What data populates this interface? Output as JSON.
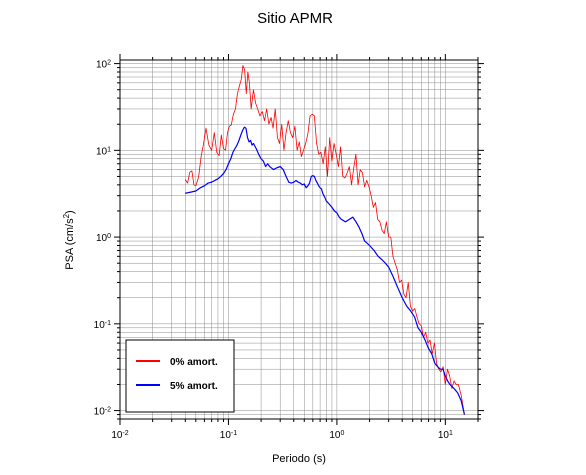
{
  "chart_data": {
    "type": "line",
    "title": "Sitio APMR",
    "xlabel": "Periodo (s)",
    "ylabel_main": "PSA (cm/s",
    "ylabel_exp": "2",
    "ylabel_tail": ")",
    "xscale": "log",
    "yscale": "log",
    "xlim": [
      0.01,
      20
    ],
    "ylim": [
      0.008,
      110
    ],
    "grid": true,
    "legend_position": "bottom-left",
    "x_ticks": [
      {
        "value": 0.01,
        "base": "10",
        "exp": "-2"
      },
      {
        "value": 0.1,
        "base": "10",
        "exp": "-1"
      },
      {
        "value": 1,
        "base": "10",
        "exp": "0"
      },
      {
        "value": 10,
        "base": "10",
        "exp": "1"
      }
    ],
    "y_ticks": [
      {
        "value": 0.01,
        "base": "10",
        "exp": "-2"
      },
      {
        "value": 0.1,
        "base": "10",
        "exp": "-1"
      },
      {
        "value": 1,
        "base": "10",
        "exp": "0"
      },
      {
        "value": 10,
        "base": "10",
        "exp": "1"
      },
      {
        "value": 100,
        "base": "10",
        "exp": "2"
      }
    ],
    "series": [
      {
        "name": "0% amort.",
        "color": "#ff0000",
        "points": [
          [
            0.04,
            4.6
          ],
          [
            0.042,
            4.2
          ],
          [
            0.044,
            5.6
          ],
          [
            0.046,
            5.8
          ],
          [
            0.048,
            4.0
          ],
          [
            0.05,
            3.9
          ],
          [
            0.053,
            4.9
          ],
          [
            0.056,
            8.5
          ],
          [
            0.059,
            12.0
          ],
          [
            0.062,
            18.0
          ],
          [
            0.066,
            11.5
          ],
          [
            0.07,
            10.0
          ],
          [
            0.074,
            16.0
          ],
          [
            0.078,
            9.5
          ],
          [
            0.082,
            8.7
          ],
          [
            0.086,
            15.0
          ],
          [
            0.09,
            10.5
          ],
          [
            0.094,
            10.0
          ],
          [
            0.098,
            16.0
          ],
          [
            0.102,
            19.0
          ],
          [
            0.106,
            19.5
          ],
          [
            0.111,
            26.0
          ],
          [
            0.116,
            30.0
          ],
          [
            0.121,
            45.0
          ],
          [
            0.126,
            55.0
          ],
          [
            0.131,
            65.0
          ],
          [
            0.136,
            95.0
          ],
          [
            0.141,
            85.0
          ],
          [
            0.146,
            45.0
          ],
          [
            0.151,
            80.0
          ],
          [
            0.156,
            60.0
          ],
          [
            0.162,
            30.0
          ],
          [
            0.17,
            50.0
          ],
          [
            0.178,
            35.0
          ],
          [
            0.186,
            30.0
          ],
          [
            0.195,
            25.0
          ],
          [
            0.205,
            28.0
          ],
          [
            0.215,
            22.0
          ],
          [
            0.225,
            30.0
          ],
          [
            0.236,
            20.0
          ],
          [
            0.247,
            24.0
          ],
          [
            0.258,
            18.0
          ],
          [
            0.27,
            30.0
          ],
          [
            0.283,
            14.0
          ],
          [
            0.296,
            12.0
          ],
          [
            0.31,
            20.0
          ],
          [
            0.325,
            10.0
          ],
          [
            0.34,
            16.0
          ],
          [
            0.356,
            22.0
          ],
          [
            0.373,
            16.0
          ],
          [
            0.391,
            14.0
          ],
          [
            0.41,
            19.0
          ],
          [
            0.43,
            10.0
          ],
          [
            0.45,
            12.5
          ],
          [
            0.47,
            8.5
          ],
          [
            0.492,
            10.0
          ],
          [
            0.515,
            12.0
          ],
          [
            0.54,
            15.5
          ],
          [
            0.566,
            25.0
          ],
          [
            0.593,
            26.0
          ],
          [
            0.62,
            25.0
          ],
          [
            0.65,
            12.0
          ],
          [
            0.681,
            9.0
          ],
          [
            0.713,
            9.5
          ],
          [
            0.747,
            7.0
          ],
          [
            0.782,
            11.0
          ],
          [
            0.819,
            5.0
          ],
          [
            0.858,
            14.0
          ],
          [
            0.899,
            7.5
          ],
          [
            0.941,
            12.0
          ],
          [
            0.986,
            9.0
          ],
          [
            1.033,
            6.5
          ],
          [
            1.082,
            11.0
          ],
          [
            1.133,
            5.0
          ],
          [
            1.187,
            4.8
          ],
          [
            1.243,
            5.5
          ],
          [
            1.302,
            6.5
          ],
          [
            1.364,
            4.0
          ],
          [
            1.428,
            6.2
          ],
          [
            1.496,
            9.0
          ],
          [
            1.567,
            4.0
          ],
          [
            1.641,
            6.0
          ],
          [
            1.719,
            5.5
          ],
          [
            1.801,
            3.8
          ],
          [
            1.886,
            4.5
          ],
          [
            1.976,
            3.8
          ],
          [
            2.069,
            3.0
          ],
          [
            2.167,
            2.2
          ],
          [
            2.27,
            2.5
          ],
          [
            2.378,
            1.6
          ],
          [
            2.49,
            1.5
          ],
          [
            2.608,
            1.2
          ],
          [
            2.732,
            1.1
          ],
          [
            2.861,
            1.5
          ],
          [
            2.997,
            1.0
          ],
          [
            3.139,
            1.0
          ],
          [
            3.288,
            0.6
          ],
          [
            3.444,
            0.5
          ],
          [
            3.607,
            0.42
          ],
          [
            3.778,
            0.3
          ],
          [
            3.957,
            0.32
          ],
          [
            4.145,
            0.22
          ],
          [
            4.341,
            0.2
          ],
          [
            4.547,
            0.3
          ],
          [
            4.763,
            0.16
          ],
          [
            4.988,
            0.14
          ],
          [
            5.225,
            0.15
          ],
          [
            5.472,
            0.12
          ],
          [
            5.732,
            0.1
          ],
          [
            6.003,
            0.095
          ],
          [
            6.288,
            0.07
          ],
          [
            6.586,
            0.08
          ],
          [
            6.898,
            0.06
          ],
          [
            7.225,
            0.065
          ],
          [
            7.567,
            0.045
          ],
          [
            7.926,
            0.06
          ],
          [
            8.302,
            0.035
          ],
          [
            8.695,
            0.03
          ],
          [
            9.107,
            0.028
          ],
          [
            9.538,
            0.032
          ],
          [
            9.991,
            0.02
          ],
          [
            10.464,
            0.03
          ],
          [
            10.96,
            0.025
          ],
          [
            11.48,
            0.018
          ],
          [
            12.024,
            0.022
          ],
          [
            12.593,
            0.02
          ],
          [
            13.19,
            0.02
          ],
          [
            14.0,
            0.015
          ],
          [
            15.0,
            0.009
          ]
        ]
      },
      {
        "name": "5% amort.",
        "color": "#0000ff",
        "points": [
          [
            0.04,
            3.2
          ],
          [
            0.045,
            3.3
          ],
          [
            0.05,
            3.4
          ],
          [
            0.055,
            3.7
          ],
          [
            0.06,
            3.9
          ],
          [
            0.065,
            4.2
          ],
          [
            0.07,
            4.3
          ],
          [
            0.075,
            4.5
          ],
          [
            0.08,
            4.7
          ],
          [
            0.085,
            5.0
          ],
          [
            0.09,
            5.4
          ],
          [
            0.095,
            6.0
          ],
          [
            0.1,
            7.0
          ],
          [
            0.105,
            8.0
          ],
          [
            0.11,
            9.5
          ],
          [
            0.115,
            10.5
          ],
          [
            0.12,
            11.5
          ],
          [
            0.125,
            13.0
          ],
          [
            0.13,
            15.0
          ],
          [
            0.135,
            17.0
          ],
          [
            0.14,
            18.5
          ],
          [
            0.145,
            18.0
          ],
          [
            0.15,
            14.0
          ],
          [
            0.155,
            12.5
          ],
          [
            0.16,
            13.0
          ],
          [
            0.165,
            11.5
          ],
          [
            0.17,
            12.0
          ],
          [
            0.18,
            10.5
          ],
          [
            0.19,
            9.0
          ],
          [
            0.2,
            8.0
          ],
          [
            0.21,
            7.5
          ],
          [
            0.22,
            6.5
          ],
          [
            0.23,
            7.0
          ],
          [
            0.24,
            6.5
          ],
          [
            0.26,
            6.0
          ],
          [
            0.28,
            6.3
          ],
          [
            0.3,
            6.5
          ],
          [
            0.32,
            6.0
          ],
          [
            0.34,
            5.0
          ],
          [
            0.36,
            4.3
          ],
          [
            0.38,
            4.2
          ],
          [
            0.4,
            4.3
          ],
          [
            0.42,
            4.5
          ],
          [
            0.44,
            4.3
          ],
          [
            0.46,
            4.2
          ],
          [
            0.48,
            4.0
          ],
          [
            0.5,
            4.1
          ],
          [
            0.52,
            3.7
          ],
          [
            0.54,
            3.9
          ],
          [
            0.56,
            4.2
          ],
          [
            0.58,
            5.0
          ],
          [
            0.6,
            5.1
          ],
          [
            0.62,
            5.0
          ],
          [
            0.64,
            4.5
          ],
          [
            0.66,
            4.2
          ],
          [
            0.68,
            3.9
          ],
          [
            0.7,
            3.7
          ],
          [
            0.72,
            3.6
          ],
          [
            0.74,
            3.2
          ],
          [
            0.76,
            3.0
          ],
          [
            0.78,
            2.8
          ],
          [
            0.8,
            2.6
          ],
          [
            0.85,
            2.4
          ],
          [
            0.9,
            2.2
          ],
          [
            0.95,
            2.0
          ],
          [
            1.0,
            1.9
          ],
          [
            1.05,
            1.7
          ],
          [
            1.1,
            1.6
          ],
          [
            1.15,
            1.55
          ],
          [
            1.2,
            1.5
          ],
          [
            1.3,
            1.6
          ],
          [
            1.4,
            1.7
          ],
          [
            1.5,
            1.5
          ],
          [
            1.6,
            1.3
          ],
          [
            1.7,
            1.1
          ],
          [
            1.8,
            0.9
          ],
          [
            1.9,
            0.85
          ],
          [
            2.0,
            0.8
          ],
          [
            2.2,
            0.7
          ],
          [
            2.4,
            0.6
          ],
          [
            2.6,
            0.55
          ],
          [
            2.8,
            0.5
          ],
          [
            3.0,
            0.45
          ],
          [
            3.3,
            0.35
          ],
          [
            3.6,
            0.27
          ],
          [
            4.0,
            0.2
          ],
          [
            4.4,
            0.16
          ],
          [
            4.8,
            0.14
          ],
          [
            5.2,
            0.12
          ],
          [
            5.6,
            0.09
          ],
          [
            6.0,
            0.08
          ],
          [
            6.5,
            0.065
          ],
          [
            7.0,
            0.052
          ],
          [
            7.5,
            0.045
          ],
          [
            8.0,
            0.035
          ],
          [
            8.5,
            0.032
          ],
          [
            9.0,
            0.03
          ],
          [
            9.5,
            0.03
          ],
          [
            10.0,
            0.025
          ],
          [
            10.5,
            0.022
          ],
          [
            11.0,
            0.02
          ],
          [
            12.0,
            0.018
          ],
          [
            13.0,
            0.016
          ],
          [
            14.0,
            0.013
          ],
          [
            15.0,
            0.009
          ]
        ]
      }
    ]
  }
}
